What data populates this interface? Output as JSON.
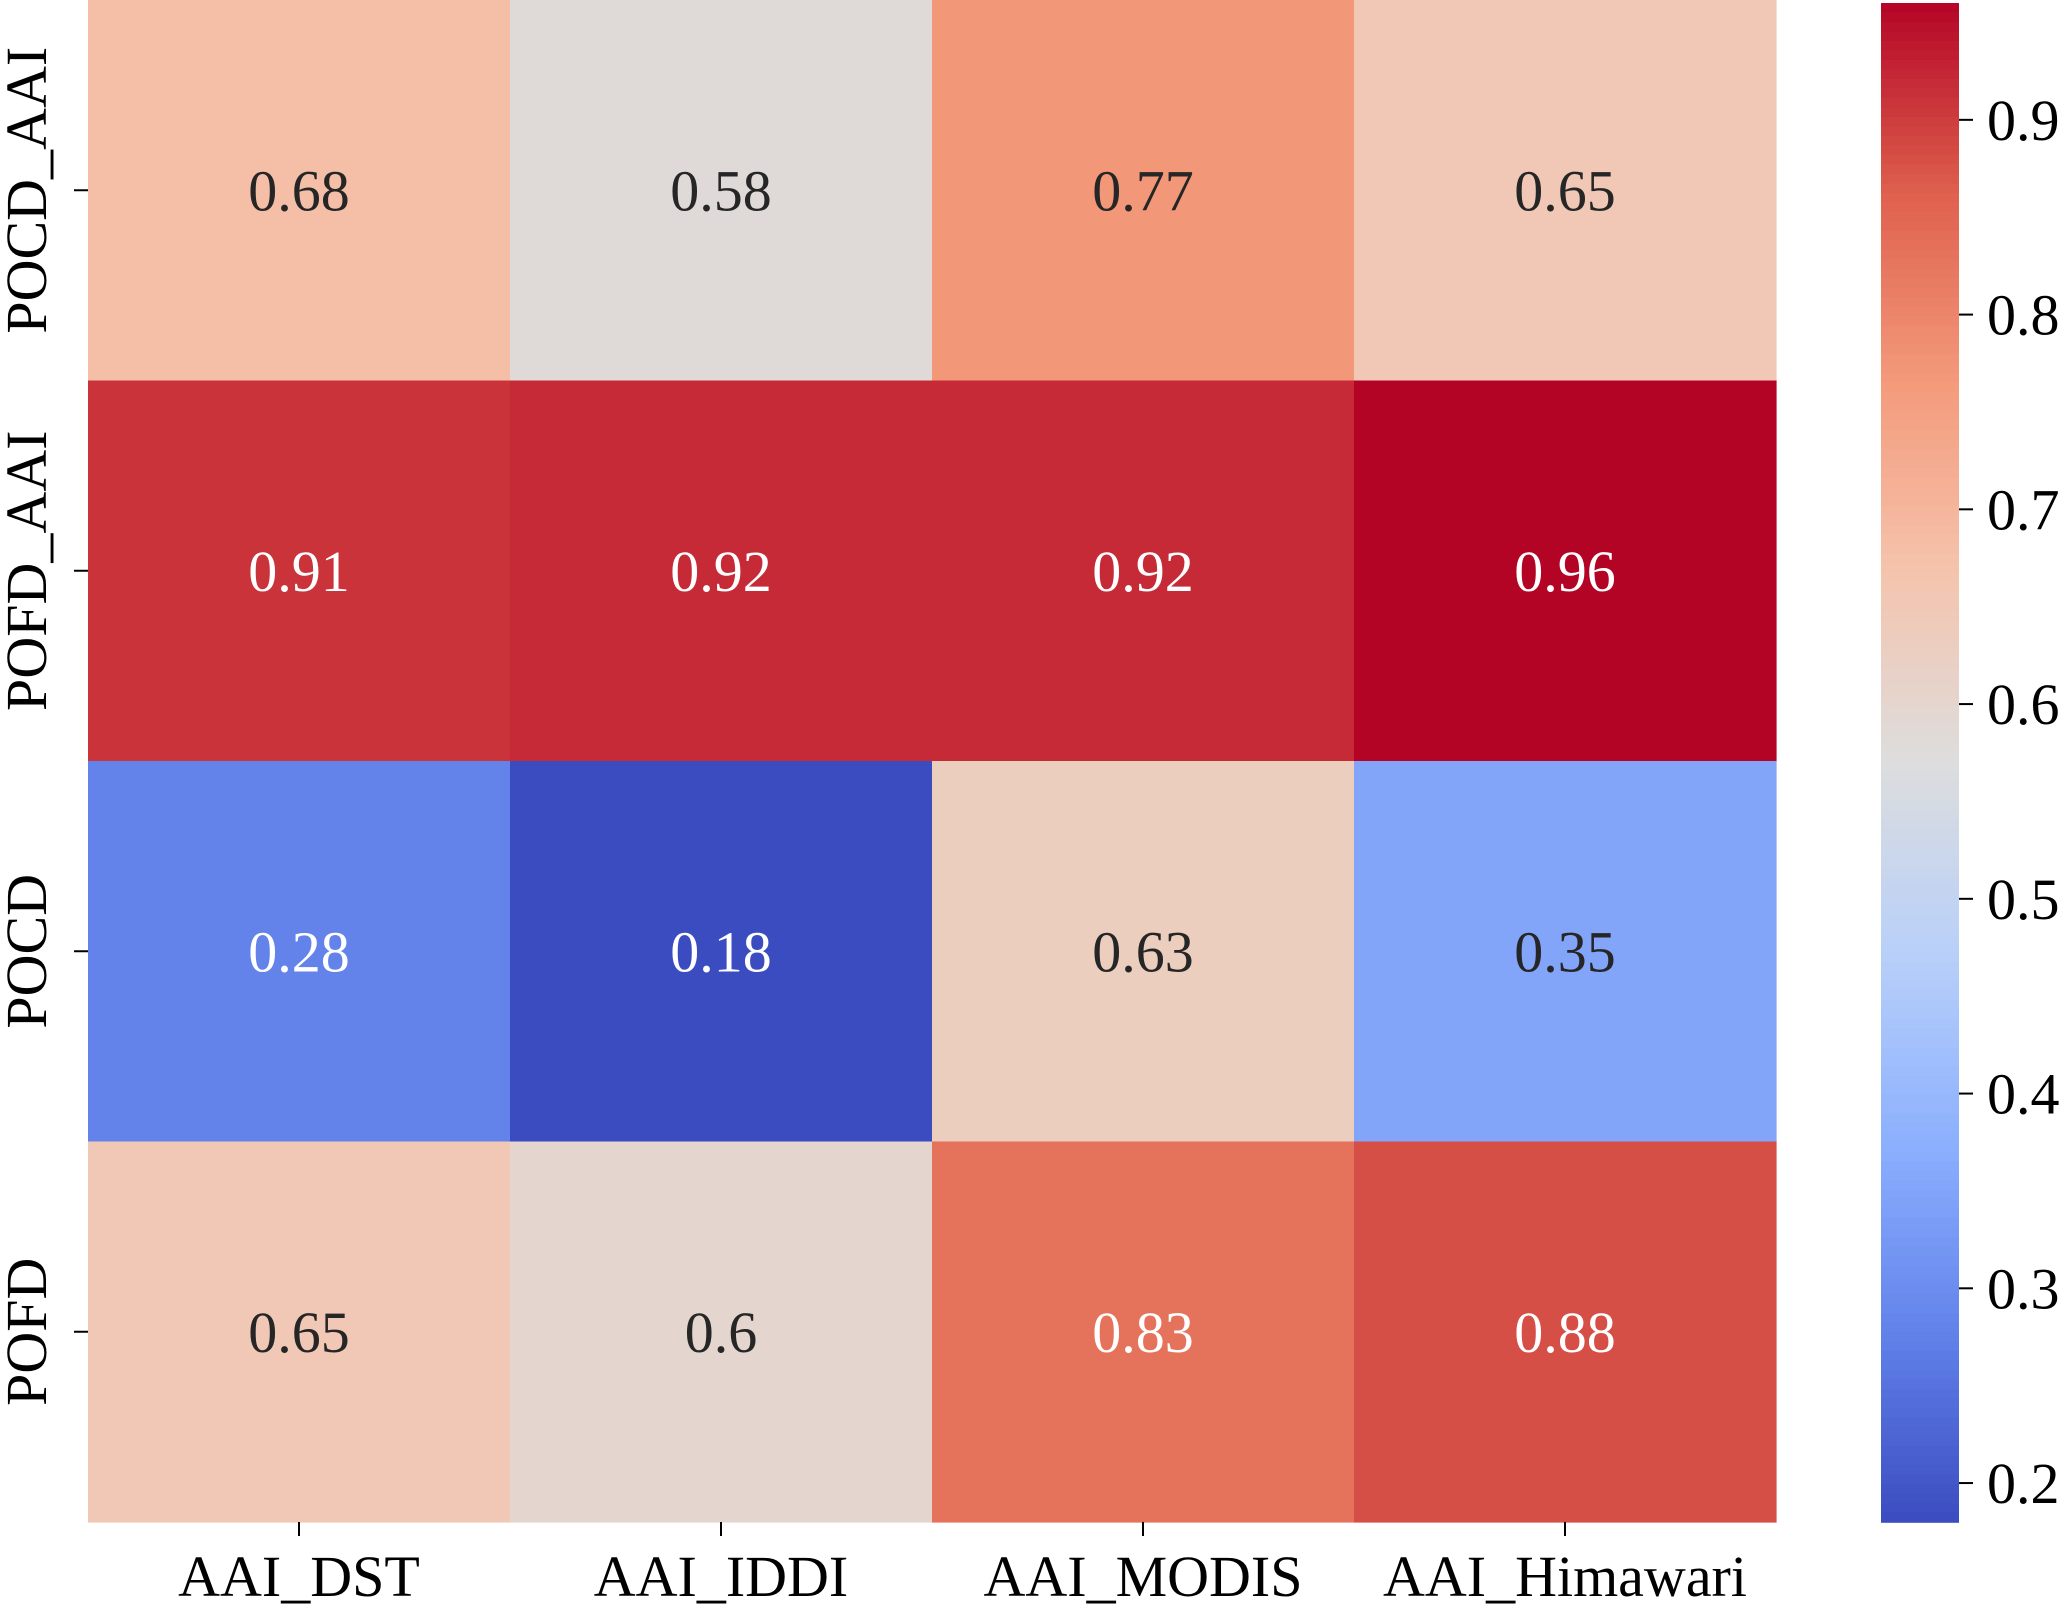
{
  "chart_data": {
    "type": "heatmap",
    "title": "",
    "xlabel": "",
    "ylabel": "",
    "x_categories": [
      "AAI_DST",
      "AAI_IDDI",
      "AAI_MODIS",
      "AAI_Himawari"
    ],
    "y_categories": [
      "POCD_AAI",
      "POFD_AAI",
      "POCD",
      "POFD"
    ],
    "values": [
      [
        0.68,
        0.58,
        0.77,
        0.65
      ],
      [
        0.91,
        0.92,
        0.92,
        0.96
      ],
      [
        0.28,
        0.18,
        0.63,
        0.35
      ],
      [
        0.65,
        0.6,
        0.83,
        0.88
      ]
    ],
    "value_labels": [
      [
        "0.68",
        "0.58",
        "0.77",
        "0.65"
      ],
      [
        "0.91",
        "0.92",
        "0.92",
        "0.96"
      ],
      [
        "0.28",
        "0.18",
        "0.63",
        "0.35"
      ],
      [
        "0.65",
        "0.6",
        "0.83",
        "0.88"
      ]
    ],
    "colormap": "coolwarm",
    "vmin": 0.18,
    "vmax": 0.96,
    "colorbar": {
      "ticks": [
        0.2,
        0.3,
        0.4,
        0.5,
        0.6,
        0.7,
        0.8,
        0.9
      ],
      "tick_labels": [
        "0.2",
        "0.3",
        "0.4",
        "0.5",
        "0.6",
        "0.7",
        "0.8",
        "0.9"
      ]
    }
  }
}
